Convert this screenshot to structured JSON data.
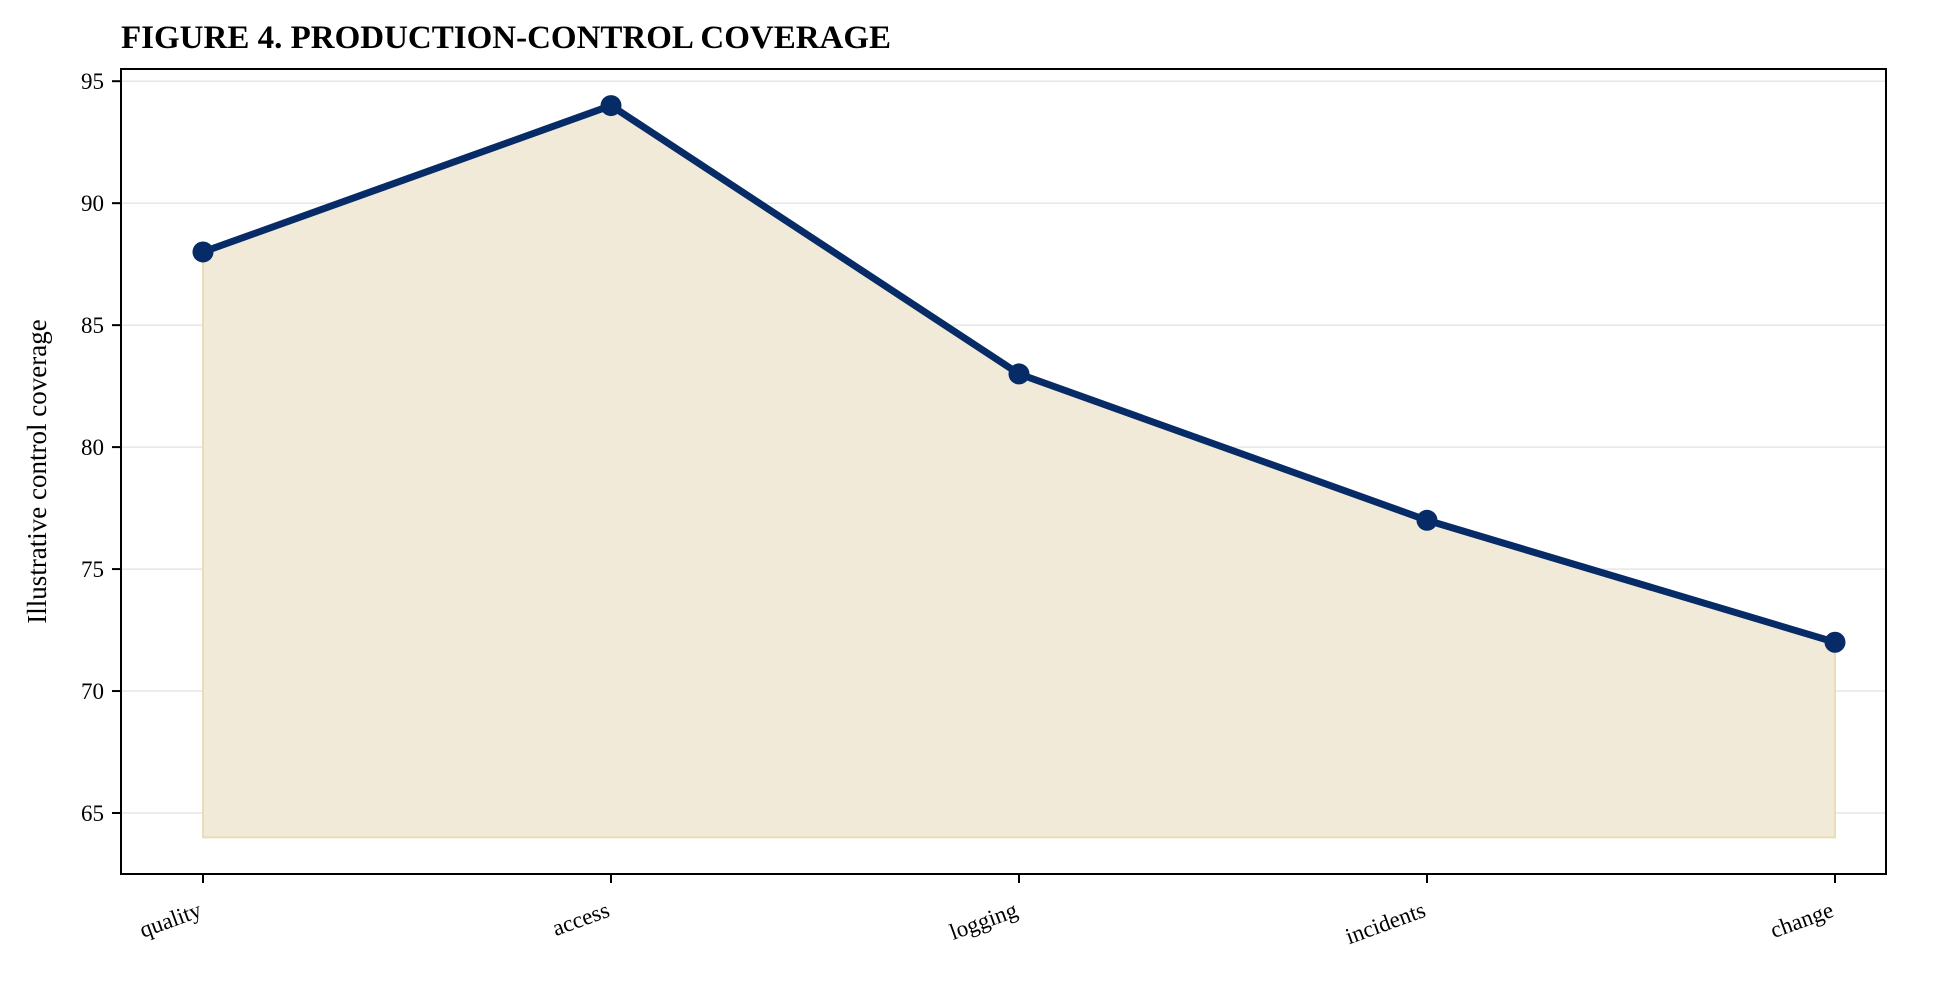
{
  "chart_data": {
    "type": "line",
    "title": "FIGURE 4. PRODUCTION-CONTROL COVERAGE",
    "xlabel": "",
    "ylabel": "Illustrative control coverage",
    "categories": [
      "quality",
      "access",
      "logging",
      "incidents",
      "change"
    ],
    "series": [
      {
        "values": [
          88,
          94,
          83,
          77,
          72
        ]
      }
    ],
    "area_baseline": 64,
    "ylim": [
      62.5,
      95.5
    ],
    "yticks": [
      65,
      70,
      75,
      80,
      85,
      90,
      95
    ],
    "grid": "horizontal",
    "colors": {
      "line": "#062b66",
      "fill": "#f2ead9",
      "fill_edge": "#eadcb8",
      "grid": "#e6e6e6"
    }
  }
}
